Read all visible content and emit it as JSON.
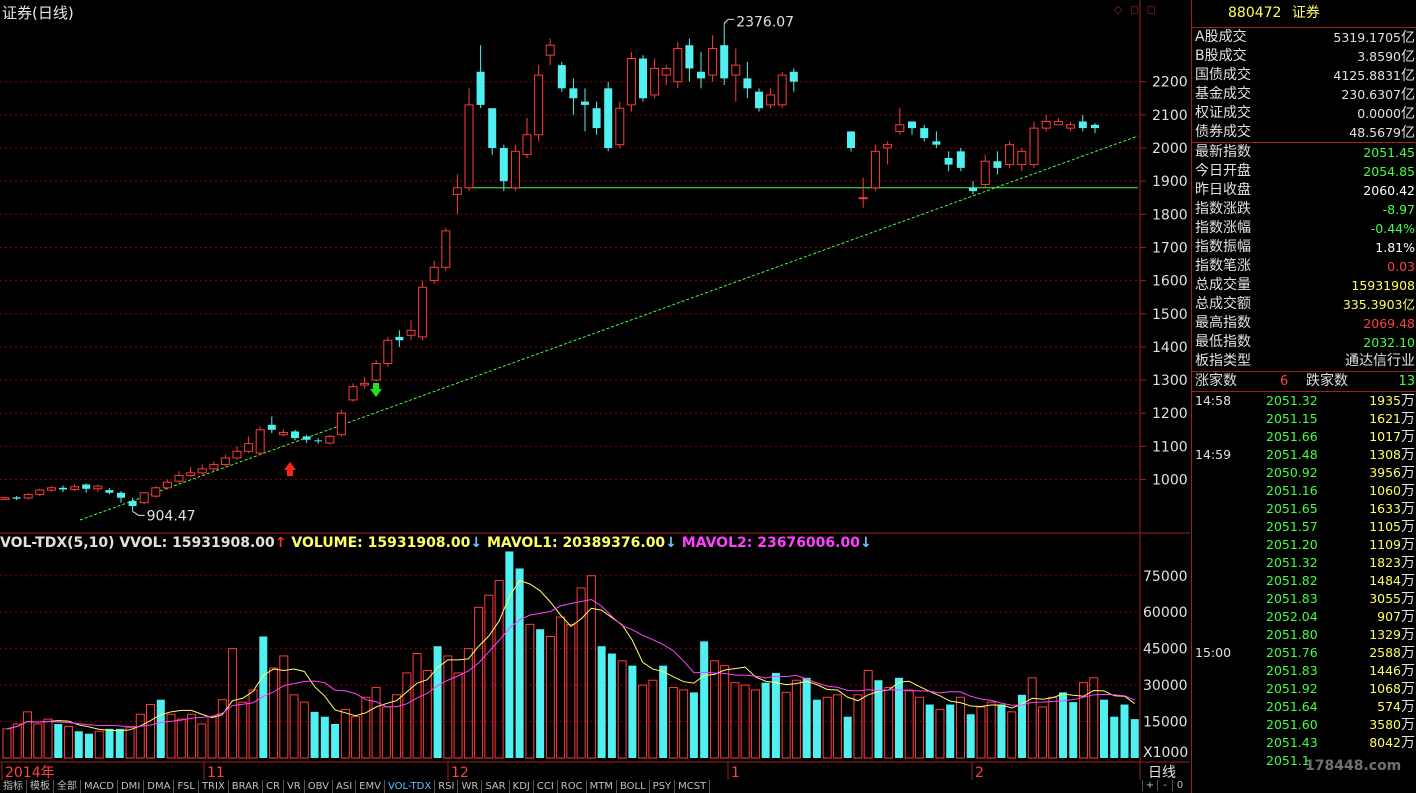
{
  "chart": {
    "title": "证券(日线)",
    "window_buttons": "◇ ◻ ◻",
    "high_label": "2376.07",
    "low_label": "904.47",
    "axis_x_labels": [
      "2014年",
      "11",
      "12",
      "1",
      "2"
    ],
    "price_axis": [
      "2200",
      "2100",
      "2000",
      "1900",
      "1800",
      "1700",
      "1600",
      "1500",
      "1400",
      "1300",
      "1200",
      "1100",
      "1000"
    ],
    "volume_axis": [
      "75000",
      "60000",
      "45000",
      "30000",
      "15000",
      "X1000"
    ]
  },
  "volume_header": {
    "main": "VOL-TDX(5,10)",
    "vvol": "VVOL: 15931908.00",
    "volume": "VOLUME: 15931908.00",
    "mavol1": "MAVOL1: 20389376.00",
    "mavol2": "MAVOL2: 23676006.00",
    "up_arrow": "↑",
    "down_arrow": "↓"
  },
  "panel": {
    "code": "880472",
    "name": "证券",
    "rows": [
      {
        "label": "A股成交",
        "value": "5319.1705",
        "unit": "亿",
        "color": "#e0e0e0"
      },
      {
        "label": "B股成交",
        "value": "3.8590",
        "unit": "亿",
        "color": "#e0e0e0"
      },
      {
        "label": "国债成交",
        "value": "4125.8831",
        "unit": "亿",
        "color": "#e0e0e0"
      },
      {
        "label": "基金成交",
        "value": "230.6307",
        "unit": "亿",
        "color": "#e0e0e0"
      },
      {
        "label": "权证成交",
        "value": "0.0000",
        "unit": "亿",
        "color": "#e0e0e0"
      },
      {
        "label": "债券成交",
        "value": "48.5679",
        "unit": "亿",
        "color": "#e0e0e0"
      }
    ],
    "rows2": [
      {
        "label": "最新指数",
        "value": "2051.45",
        "color": "#40ff40"
      },
      {
        "label": "今日开盘",
        "value": "2054.85",
        "color": "#40ff40"
      },
      {
        "label": "昨日收盘",
        "value": "2060.42",
        "color": "#ffffff"
      },
      {
        "label": "指数涨跌",
        "value": "-8.97",
        "color": "#40ff40"
      },
      {
        "label": "指数涨幅",
        "value": "-0.44%",
        "color": "#40ff40"
      },
      {
        "label": "指数振幅",
        "value": "1.81%",
        "color": "#ffffff"
      },
      {
        "label": "指数笔涨",
        "value": "0.03",
        "color": "#ff4040"
      },
      {
        "label": "总成交量",
        "value": "15931908",
        "color": "#ffff60"
      },
      {
        "label": "总成交额",
        "value": "335.3903亿",
        "color": "#ffff60"
      },
      {
        "label": "最高指数",
        "value": "2069.48",
        "color": "#ff4040"
      },
      {
        "label": "最低指数",
        "value": "2032.10",
        "color": "#40ff40"
      },
      {
        "label": "板指类型",
        "value": "通达信行业",
        "color": "#e0e0e0"
      }
    ],
    "up_label": "涨家数",
    "up_count": "6",
    "down_label": "跌家数",
    "down_count": "13",
    "ticks": [
      {
        "t": "14:58",
        "p": "2051.32",
        "v": "1935"
      },
      {
        "t": "",
        "p": "2051.15",
        "v": "1621"
      },
      {
        "t": "",
        "p": "2051.66",
        "v": "1017"
      },
      {
        "t": "14:59",
        "p": "2051.48",
        "v": "1308"
      },
      {
        "t": "",
        "p": "2050.92",
        "v": "3956"
      },
      {
        "t": "",
        "p": "2051.16",
        "v": "1060"
      },
      {
        "t": "",
        "p": "2051.65",
        "v": "1633"
      },
      {
        "t": "",
        "p": "2051.57",
        "v": "1105"
      },
      {
        "t": "",
        "p": "2051.20",
        "v": "1109"
      },
      {
        "t": "",
        "p": "2051.32",
        "v": "1823"
      },
      {
        "t": "",
        "p": "2051.82",
        "v": "1484"
      },
      {
        "t": "",
        "p": "2051.83",
        "v": "3055"
      },
      {
        "t": "",
        "p": "2052.04",
        "v": "907"
      },
      {
        "t": "",
        "p": "2051.80",
        "v": "1329"
      },
      {
        "t": "15:00",
        "p": "2051.76",
        "v": "2588"
      },
      {
        "t": "",
        "p": "2051.83",
        "v": "1446"
      },
      {
        "t": "",
        "p": "2051.92",
        "v": "1068"
      },
      {
        "t": "",
        "p": "2051.64",
        "v": "574"
      },
      {
        "t": "",
        "p": "2051.60",
        "v": "3580"
      },
      {
        "t": "",
        "p": "2051.43",
        "v": "8042"
      },
      {
        "t": "",
        "p": "2051.1",
        "v": ""
      }
    ],
    "tick_unit": "万"
  },
  "tabs": [
    "指标",
    "模板",
    "全部",
    "MACD",
    "DMI",
    "DMA",
    "FSL",
    "TRIX",
    "BRAR",
    "CR",
    "VR",
    "OBV",
    "ASI",
    "EMV",
    "VOL-TDX",
    "RSI",
    "WR",
    "SAR",
    "KDJ",
    "CCI",
    "ROC",
    "MTM",
    "BOLL",
    "PSY",
    "MCST"
  ],
  "active_tab": "VOL-TDX",
  "period_label": "日线",
  "small_buttons": [
    "+",
    "-",
    "0"
  ],
  "watermark": "178448.com",
  "colors": {
    "up": "#ff3a3a",
    "down": "#50f0f0",
    "ma1": "#ffff60",
    "ma2": "#ff40ff",
    "trend_line": "#40ff40",
    "grid": "#8b0000"
  },
  "candles": [
    [
      940,
      945,
      948,
      938
    ],
    [
      946,
      942,
      950,
      938
    ],
    [
      944,
      955,
      958,
      940
    ],
    [
      955,
      968,
      972,
      950
    ],
    [
      968,
      975,
      980,
      962
    ],
    [
      975,
      970,
      982,
      962
    ],
    [
      970,
      978,
      985,
      965
    ],
    [
      985,
      972,
      988,
      960
    ],
    [
      972,
      980,
      985,
      962
    ],
    [
      968,
      960,
      975,
      955
    ],
    [
      960,
      945,
      965,
      930
    ],
    [
      935,
      920,
      945,
      904
    ],
    [
      930,
      960,
      962,
      925
    ],
    [
      950,
      975,
      980,
      945
    ],
    [
      975,
      992,
      1000,
      970
    ],
    [
      995,
      1012,
      1025,
      990
    ],
    [
      1012,
      1020,
      1038,
      1008
    ],
    [
      1020,
      1032,
      1045,
      1015
    ],
    [
      1032,
      1045,
      1055,
      1025
    ],
    [
      1045,
      1065,
      1075,
      1040
    ],
    [
      1065,
      1085,
      1100,
      1060
    ],
    [
      1085,
      1108,
      1130,
      1080
    ],
    [
      1080,
      1150,
      1160,
      1075
    ],
    [
      1165,
      1150,
      1190,
      1140
    ],
    [
      1135,
      1142,
      1150,
      1130
    ],
    [
      1145,
      1125,
      1150,
      1118
    ],
    [
      1130,
      1120,
      1135,
      1110
    ],
    [
      1118,
      1115,
      1125,
      1108
    ],
    [
      1110,
      1130,
      1135,
      1105
    ],
    [
      1135,
      1200,
      1210,
      1130
    ],
    [
      1240,
      1280,
      1290,
      1235
    ],
    [
      1285,
      1290,
      1310,
      1275
    ],
    [
      1300,
      1350,
      1360,
      1295
    ],
    [
      1350,
      1420,
      1430,
      1340
    ],
    [
      1430,
      1420,
      1450,
      1400
    ],
    [
      1435,
      1450,
      1480,
      1420
    ],
    [
      1430,
      1580,
      1600,
      1420
    ],
    [
      1600,
      1640,
      1660,
      1590
    ],
    [
      1640,
      1750,
      1760,
      1630
    ],
    [
      1860,
      1880,
      1920,
      1800
    ],
    [
      1880,
      2130,
      2180,
      1870
    ],
    [
      2230,
      2130,
      2310,
      2120
    ],
    [
      2120,
      2000,
      2120,
      1980
    ],
    [
      2000,
      1900,
      2010,
      1870
    ],
    [
      1880,
      1990,
      2010,
      1870
    ],
    [
      1980,
      2040,
      2090,
      1970
    ],
    [
      2040,
      2220,
      2250,
      2020
    ],
    [
      2280,
      2310,
      2330,
      2250
    ],
    [
      2250,
      2180,
      2260,
      2170
    ],
    [
      2180,
      2150,
      2210,
      2100
    ],
    [
      2140,
      2130,
      2180,
      2050
    ],
    [
      2120,
      2060,
      2140,
      2040
    ],
    [
      2180,
      2000,
      2200,
      1990
    ],
    [
      2010,
      2120,
      2140,
      2000
    ],
    [
      2130,
      2270,
      2290,
      2110
    ],
    [
      2270,
      2150,
      2280,
      2140
    ],
    [
      2160,
      2240,
      2270,
      2150
    ],
    [
      2220,
      2240,
      2250,
      2190
    ],
    [
      2200,
      2300,
      2320,
      2180
    ],
    [
      2310,
      2240,
      2330,
      2200
    ],
    [
      2230,
      2210,
      2290,
      2180
    ],
    [
      2220,
      2300,
      2340,
      2200
    ],
    [
      2310,
      2210,
      2376,
      2190
    ],
    [
      2220,
      2250,
      2300,
      2140
    ],
    [
      2210,
      2180,
      2260,
      2150
    ],
    [
      2170,
      2120,
      2180,
      2110
    ],
    [
      2130,
      2160,
      2180,
      2120
    ],
    [
      2130,
      2220,
      2230,
      2120
    ],
    [
      2230,
      2200,
      2240,
      2170
    ]
  ],
  "candles2": [
    [
      2050,
      2000,
      2050,
      1990
    ],
    [
      1850,
      1850,
      1910,
      1820
    ],
    [
      1880,
      1990,
      2010,
      1870
    ],
    [
      2000,
      2010,
      2020,
      1950
    ],
    [
      2050,
      2070,
      2120,
      2040
    ],
    [
      2080,
      2060,
      2080,
      2040
    ],
    [
      2060,
      2030,
      2070,
      2020
    ],
    [
      2020,
      2010,
      2050,
      2000
    ],
    [
      1970,
      1950,
      1990,
      1930
    ],
    [
      1990,
      1940,
      2000,
      1930
    ],
    [
      1880,
      1870,
      1900,
      1860
    ],
    [
      1890,
      1960,
      1980,
      1880
    ],
    [
      1960,
      1940,
      1990,
      1920
    ],
    [
      1950,
      2010,
      2020,
      1940
    ],
    [
      1950,
      1990,
      2000,
      1930
    ],
    [
      1950,
      2060,
      2080,
      1940
    ],
    [
      2060,
      2080,
      2100,
      2050
    ],
    [
      2070,
      2080,
      2090,
      2070
    ],
    [
      2060,
      2070,
      2080,
      2050
    ],
    [
      2080,
      2060,
      2100,
      2050
    ],
    [
      2070,
      2060,
      2075,
      2045
    ]
  ],
  "volumes": [
    [
      12,
      0
    ],
    [
      14,
      0
    ],
    [
      19,
      0
    ],
    [
      14,
      0
    ],
    [
      16,
      0
    ],
    [
      14,
      1
    ],
    [
      13,
      0
    ],
    [
      11,
      1
    ],
    [
      10,
      1
    ],
    [
      11,
      0
    ],
    [
      12,
      1
    ],
    [
      12,
      1
    ],
    [
      13,
      0
    ],
    [
      18,
      0
    ],
    [
      22,
      0
    ],
    [
      24,
      1
    ],
    [
      18,
      0
    ],
    [
      16,
      0
    ],
    [
      18,
      0
    ],
    [
      14,
      0
    ],
    [
      17,
      0
    ],
    [
      24,
      0
    ],
    [
      45,
      0
    ],
    [
      23,
      0
    ],
    [
      28,
      0
    ],
    [
      50,
      1
    ],
    [
      37,
      0
    ],
    [
      42,
      0
    ],
    [
      26,
      0
    ],
    [
      23,
      0
    ],
    [
      19,
      1
    ],
    [
      17,
      1
    ],
    [
      14,
      1
    ],
    [
      20,
      0
    ],
    [
      17,
      0
    ],
    [
      25,
      0
    ],
    [
      29,
      0
    ],
    [
      21,
      0
    ],
    [
      26,
      0
    ],
    [
      35,
      0
    ],
    [
      43,
      0
    ],
    [
      36,
      0
    ],
    [
      46,
      1
    ],
    [
      42,
      0
    ],
    [
      35,
      0
    ],
    [
      45,
      0
    ],
    [
      62,
      0
    ],
    [
      67,
      0
    ],
    [
      73,
      0
    ],
    [
      85,
      1
    ],
    [
      78,
      1
    ],
    [
      55,
      0
    ],
    [
      53,
      1
    ],
    [
      50,
      0
    ],
    [
      58,
      0
    ],
    [
      55,
      0
    ],
    [
      70,
      0
    ],
    [
      75,
      0
    ],
    [
      46,
      1
    ],
    [
      43,
      1
    ],
    [
      40,
      0
    ],
    [
      38,
      1
    ],
    [
      30,
      0
    ],
    [
      32,
      0
    ],
    [
      38,
      1
    ],
    [
      29,
      0
    ],
    [
      28,
      0
    ],
    [
      27,
      1
    ],
    [
      48,
      1
    ],
    [
      40,
      0
    ],
    [
      38,
      0
    ],
    [
      31,
      0
    ],
    [
      30,
      0
    ],
    [
      28,
      0
    ],
    [
      31,
      1
    ],
    [
      35,
      1
    ],
    [
      27,
      0
    ],
    [
      32,
      0
    ],
    [
      33,
      1
    ],
    [
      24,
      1
    ],
    [
      25,
      0
    ],
    [
      26,
      0
    ],
    [
      17,
      1
    ],
    [
      26,
      0
    ],
    [
      36,
      0
    ],
    [
      32,
      1
    ],
    [
      29,
      0
    ],
    [
      33,
      1
    ],
    [
      28,
      0
    ],
    [
      25,
      0
    ],
    [
      22,
      1
    ],
    [
      20,
      0
    ],
    [
      22,
      1
    ],
    [
      25,
      0
    ],
    [
      18,
      1
    ],
    [
      21,
      0
    ],
    [
      23,
      0
    ],
    [
      22,
      1
    ],
    [
      19,
      0
    ],
    [
      26,
      1
    ],
    [
      33,
      0
    ],
    [
      21,
      0
    ],
    [
      25,
      0
    ],
    [
      27,
      1
    ],
    [
      23,
      1
    ],
    [
      31,
      0
    ],
    [
      33,
      0
    ],
    [
      24,
      1
    ],
    [
      17,
      1
    ],
    [
      22,
      1
    ],
    [
      16,
      1
    ]
  ]
}
